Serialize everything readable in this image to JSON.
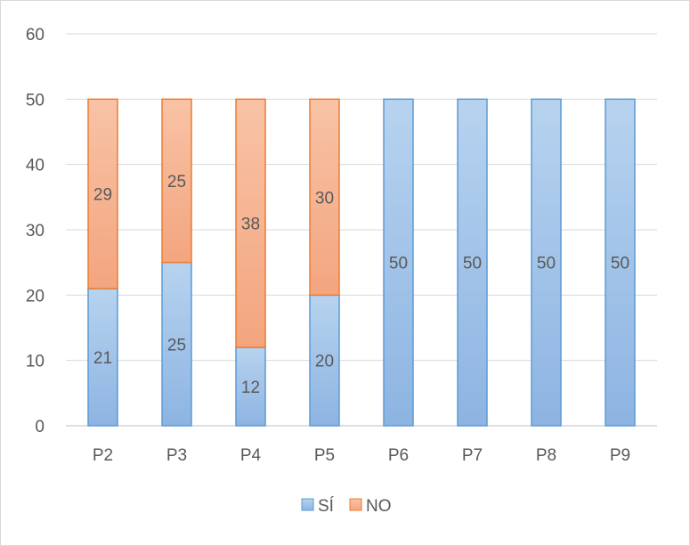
{
  "chart_data": {
    "type": "bar",
    "stacked": true,
    "categories": [
      "P2",
      "P3",
      "P4",
      "P5",
      "P6",
      "P7",
      "P8",
      "P9"
    ],
    "series": [
      {
        "name": "SÍ",
        "values": [
          21,
          25,
          12,
          20,
          50,
          50,
          50,
          50
        ],
        "color": "#9dc3e6",
        "border": "#5b9bd5"
      },
      {
        "name": "NO",
        "values": [
          29,
          25,
          38,
          30,
          0,
          0,
          0,
          0
        ],
        "color": "#f4b183",
        "border": "#ed7d31"
      }
    ],
    "ylim": [
      0,
      60
    ],
    "yticks": [
      0,
      10,
      20,
      30,
      40,
      50,
      60
    ],
    "grid": true,
    "legend": "bottom",
    "data_labels": true
  }
}
